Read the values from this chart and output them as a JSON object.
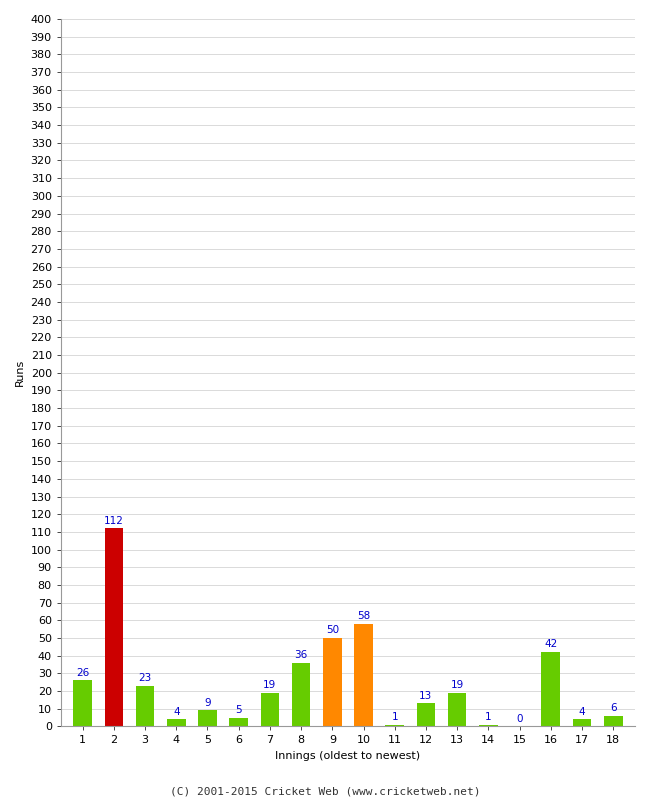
{
  "innings": [
    1,
    2,
    3,
    4,
    5,
    6,
    7,
    8,
    9,
    10,
    11,
    12,
    13,
    14,
    15,
    16,
    17,
    18
  ],
  "runs": [
    26,
    112,
    23,
    4,
    9,
    5,
    19,
    36,
    50,
    58,
    1,
    13,
    19,
    1,
    0,
    42,
    4,
    6
  ],
  "colors": [
    "#66cc00",
    "#cc0000",
    "#66cc00",
    "#66cc00",
    "#66cc00",
    "#66cc00",
    "#66cc00",
    "#66cc00",
    "#ff8800",
    "#ff8800",
    "#66cc00",
    "#66cc00",
    "#66cc00",
    "#66cc00",
    "#66cc00",
    "#66cc00",
    "#66cc00",
    "#66cc00"
  ],
  "xlabel": "Innings (oldest to newest)",
  "ylabel": "Runs",
  "ylim": [
    0,
    400
  ],
  "ytick_step": 10,
  "footer": "(C) 2001-2015 Cricket Web (www.cricketweb.net)",
  "label_color": "#0000cc",
  "background_color": "#ffffff",
  "grid_color": "#cccccc",
  "bar_width": 0.6,
  "label_fontsize": 7.5,
  "axis_fontsize": 8,
  "footer_fontsize": 8
}
